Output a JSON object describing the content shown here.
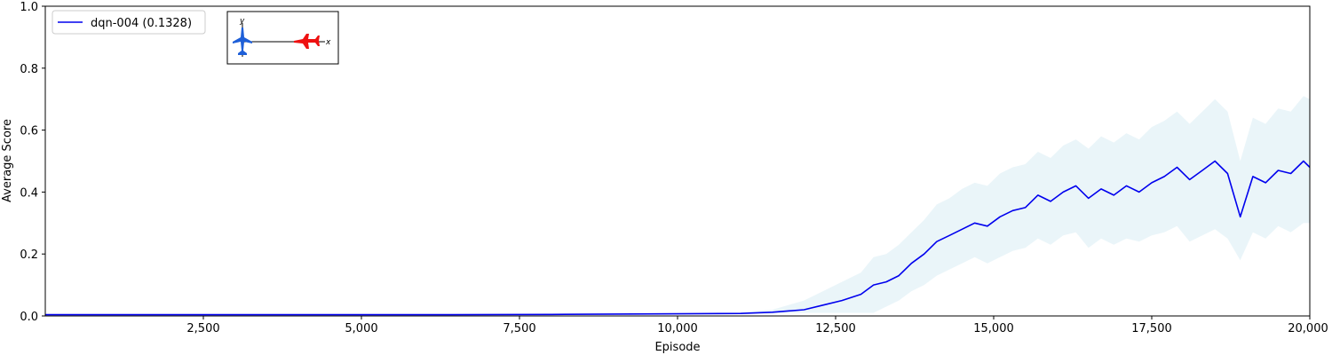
{
  "chart_data": {
    "type": "line",
    "title": "",
    "xlabel": "Episode",
    "ylabel": "Average Score",
    "xlim": [
      0,
      20000
    ],
    "ylim": [
      0,
      1.0
    ],
    "x_ticks": [
      2500,
      5000,
      7500,
      10000,
      12500,
      15000,
      17500,
      20000
    ],
    "x_tick_labels": [
      "2,500",
      "5,000",
      "7,500",
      "10,000",
      "12,500",
      "15,000",
      "17,500",
      "20,000"
    ],
    "y_ticks": [
      0.0,
      0.2,
      0.4,
      0.6,
      0.8,
      1.0
    ],
    "y_tick_labels": [
      "0.0",
      "0.2",
      "0.4",
      "0.6",
      "0.8",
      "1.0"
    ],
    "grid": false,
    "legend": {
      "placement": "top-left",
      "entries": [
        "dqn-004 (0.1328)"
      ]
    },
    "series": [
      {
        "name": "dqn-004 (0.1328)",
        "color": "#0000ee",
        "band_color": "#add8e6",
        "x": [
          0,
          2000,
          4000,
          6000,
          8000,
          10000,
          11000,
          11500,
          12000,
          12300,
          12600,
          12900,
          13100,
          13300,
          13500,
          13700,
          13900,
          14100,
          14300,
          14500,
          14700,
          14900,
          15100,
          15300,
          15500,
          15700,
          15900,
          16100,
          16300,
          16500,
          16700,
          16900,
          17100,
          17300,
          17500,
          17700,
          17900,
          18100,
          18300,
          18500,
          18700,
          18900,
          19100,
          19300,
          19500,
          19700,
          19900,
          20000
        ],
        "values": [
          0.004,
          0.004,
          0.004,
          0.004,
          0.005,
          0.007,
          0.008,
          0.012,
          0.02,
          0.035,
          0.05,
          0.07,
          0.1,
          0.11,
          0.13,
          0.17,
          0.2,
          0.24,
          0.26,
          0.28,
          0.3,
          0.29,
          0.32,
          0.34,
          0.35,
          0.39,
          0.37,
          0.4,
          0.42,
          0.38,
          0.41,
          0.39,
          0.42,
          0.4,
          0.43,
          0.45,
          0.48,
          0.44,
          0.47,
          0.5,
          0.46,
          0.32,
          0.45,
          0.43,
          0.47,
          0.46,
          0.5,
          0.48
        ],
        "lower": [
          0.004,
          0.004,
          0.004,
          0.004,
          0.005,
          0.006,
          0.007,
          0.008,
          0.01,
          0.01,
          0.01,
          0.01,
          0.01,
          0.03,
          0.05,
          0.08,
          0.1,
          0.13,
          0.15,
          0.17,
          0.19,
          0.17,
          0.19,
          0.21,
          0.22,
          0.25,
          0.23,
          0.26,
          0.27,
          0.22,
          0.25,
          0.23,
          0.25,
          0.24,
          0.26,
          0.27,
          0.29,
          0.24,
          0.26,
          0.28,
          0.25,
          0.18,
          0.27,
          0.25,
          0.29,
          0.27,
          0.3,
          0.3
        ],
        "upper": [
          0.004,
          0.004,
          0.004,
          0.004,
          0.006,
          0.009,
          0.012,
          0.02,
          0.05,
          0.08,
          0.11,
          0.14,
          0.19,
          0.2,
          0.23,
          0.27,
          0.31,
          0.36,
          0.38,
          0.41,
          0.43,
          0.42,
          0.46,
          0.48,
          0.49,
          0.53,
          0.51,
          0.55,
          0.57,
          0.54,
          0.58,
          0.56,
          0.59,
          0.57,
          0.61,
          0.63,
          0.66,
          0.62,
          0.66,
          0.7,
          0.66,
          0.5,
          0.64,
          0.62,
          0.67,
          0.66,
          0.71,
          0.7
        ]
      }
    ]
  },
  "inset": {
    "y_axis_label": "y",
    "x_axis_label": "x",
    "left_plane_color": "#1e5fd8",
    "right_plane_color": "#ee1111"
  }
}
